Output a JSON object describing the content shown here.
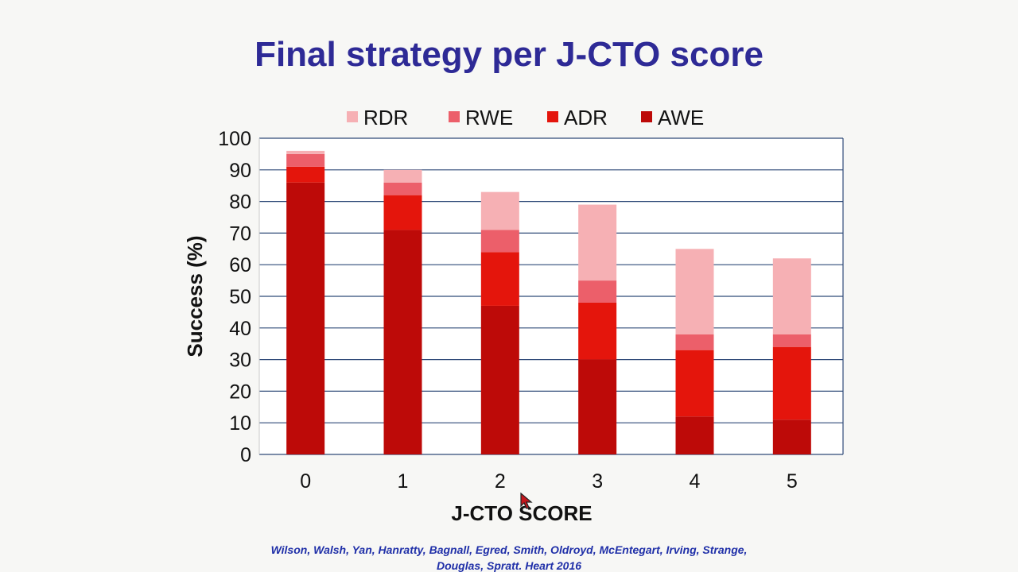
{
  "slide": {
    "title": "Final strategy per J-CTO score",
    "citation_line1": "Wilson, Walsh, Yan, Hanratty, Bagnall, Egred, Smith, Oldroyd, McEntegart, Irving, Strange,",
    "citation_line2": "Douglas, Spratt. Heart 2016"
  },
  "colors": {
    "title": "#2e2a96",
    "citation": "#1f2fa8",
    "RDR": "#f6b0b4",
    "RWE": "#ec5f6a",
    "ADR": "#e4150c",
    "AWE": "#bd0a08",
    "gridline": "#2f4a78"
  },
  "chart_data": {
    "type": "bar",
    "stacked": true,
    "categories": [
      "0",
      "1",
      "2",
      "3",
      "4",
      "5"
    ],
    "series": [
      {
        "name": "AWE",
        "values": [
          86,
          71,
          47,
          30,
          12,
          11
        ]
      },
      {
        "name": "ADR",
        "values": [
          5,
          11,
          17,
          18,
          21,
          23
        ]
      },
      {
        "name": "RWE",
        "values": [
          4,
          4,
          7,
          7,
          5,
          4
        ]
      },
      {
        "name": "RDR",
        "values": [
          1,
          4,
          12,
          24,
          27,
          24
        ]
      }
    ],
    "legend_order": [
      "RDR",
      "RWE",
      "ADR",
      "AWE"
    ],
    "legend_placement": "top-center",
    "xlabel": "J-CTO SCORE",
    "ylabel": "Success (%)",
    "ylim": [
      0,
      100
    ],
    "yticks": [
      0,
      10,
      20,
      30,
      40,
      50,
      60,
      70,
      80,
      90,
      100
    ],
    "grid": true
  }
}
